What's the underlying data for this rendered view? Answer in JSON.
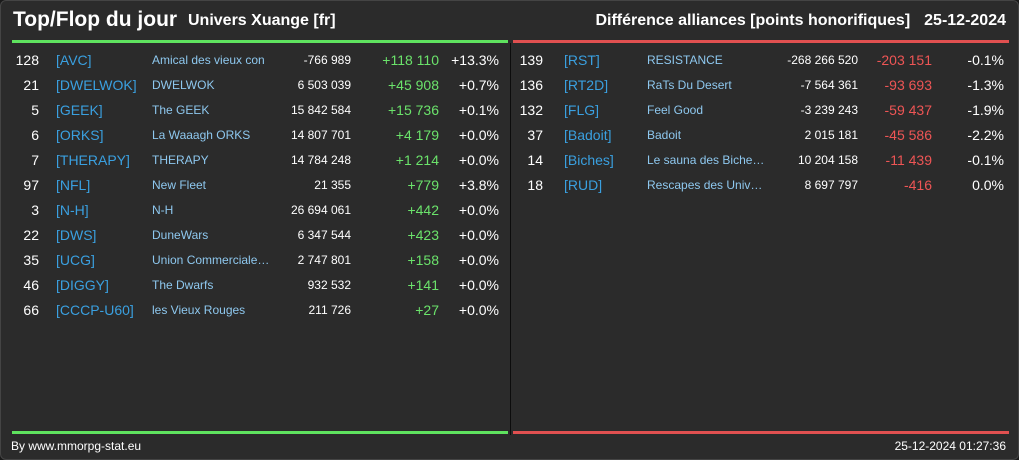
{
  "header": {
    "title": "Top/Flop du jour",
    "universe": "Univers Xuange [fr]",
    "subtitle": "Différence alliances [points honorifiques]",
    "date": "25-12-2024"
  },
  "colors": {
    "top": "#5fe35f",
    "flop": "#e05050",
    "tag": "#3aa0e0"
  },
  "top": [
    {
      "rank": "128",
      "tag": "[AVC]",
      "name": "Amical des vieux con",
      "points": "-766 989",
      "diff": "+118 110",
      "pct": "+13.3%"
    },
    {
      "rank": "21",
      "tag": "[DWELWOK]",
      "name": "DWELWOK",
      "points": "6 503 039",
      "diff": "+45 908",
      "pct": "+0.7%"
    },
    {
      "rank": "5",
      "tag": "[GEEK]",
      "name": "The GEEK",
      "points": "15 842 584",
      "diff": "+15 736",
      "pct": "+0.1%"
    },
    {
      "rank": "6",
      "tag": "[ORKS]",
      "name": "La Waaagh ORKS",
      "points": "14 807 701",
      "diff": "+4 179",
      "pct": "+0.0%"
    },
    {
      "rank": "7",
      "tag": "[THERAPY]",
      "name": "THERAPY",
      "points": "14 784 248",
      "diff": "+1 214",
      "pct": "+0.0%"
    },
    {
      "rank": "97",
      "tag": "[NFL]",
      "name": "New Fleet",
      "points": "21 355",
      "diff": "+779",
      "pct": "+3.8%"
    },
    {
      "rank": "3",
      "tag": "[N-H]",
      "name": "N-H",
      "points": "26 694 061",
      "diff": "+442",
      "pct": "+0.0%"
    },
    {
      "rank": "22",
      "tag": "[DWS]",
      "name": "DuneWars",
      "points": "6 347 544",
      "diff": "+423",
      "pct": "+0.0%"
    },
    {
      "rank": "35",
      "tag": "[UCG]",
      "name": "Union Commerciale…",
      "points": "2 747 801",
      "diff": "+158",
      "pct": "+0.0%"
    },
    {
      "rank": "46",
      "tag": "[DIGGY]",
      "name": "The Dwarfs",
      "points": "932 532",
      "diff": "+141",
      "pct": "+0.0%"
    },
    {
      "rank": "66",
      "tag": "[CCCP-U60]",
      "name": "les Vieux Rouges",
      "points": "211 726",
      "diff": "+27",
      "pct": "+0.0%"
    }
  ],
  "flop": [
    {
      "rank": "139",
      "tag": "[RST]",
      "name": "RESISTANCE",
      "points": "-268 266 520",
      "diff": "-203 151",
      "pct": "-0.1%"
    },
    {
      "rank": "136",
      "tag": "[RT2D]",
      "name": "RaTs Du Desert",
      "points": "-7 564 361",
      "diff": "-93 693",
      "pct": "-1.3%"
    },
    {
      "rank": "132",
      "tag": "[FLG]",
      "name": "Feel Good",
      "points": "-3 239 243",
      "diff": "-59 437",
      "pct": "-1.9%"
    },
    {
      "rank": "37",
      "tag": "[Badoit]",
      "name": "Badoit",
      "points": "2 015 181",
      "diff": "-45 586",
      "pct": "-2.2%"
    },
    {
      "rank": "14",
      "tag": "[Biches]",
      "name": "Le sauna des Biche…",
      "points": "10 204 158",
      "diff": "-11 439",
      "pct": "-0.1%"
    },
    {
      "rank": "18",
      "tag": "[RUD]",
      "name": "Rescapes des Univ…",
      "points": "8 697 797",
      "diff": "-416",
      "pct": "0.0%"
    }
  ],
  "footer": {
    "source": "By www.mmorpg-stat.eu",
    "timestamp": "25-12-2024 01:27:36"
  }
}
